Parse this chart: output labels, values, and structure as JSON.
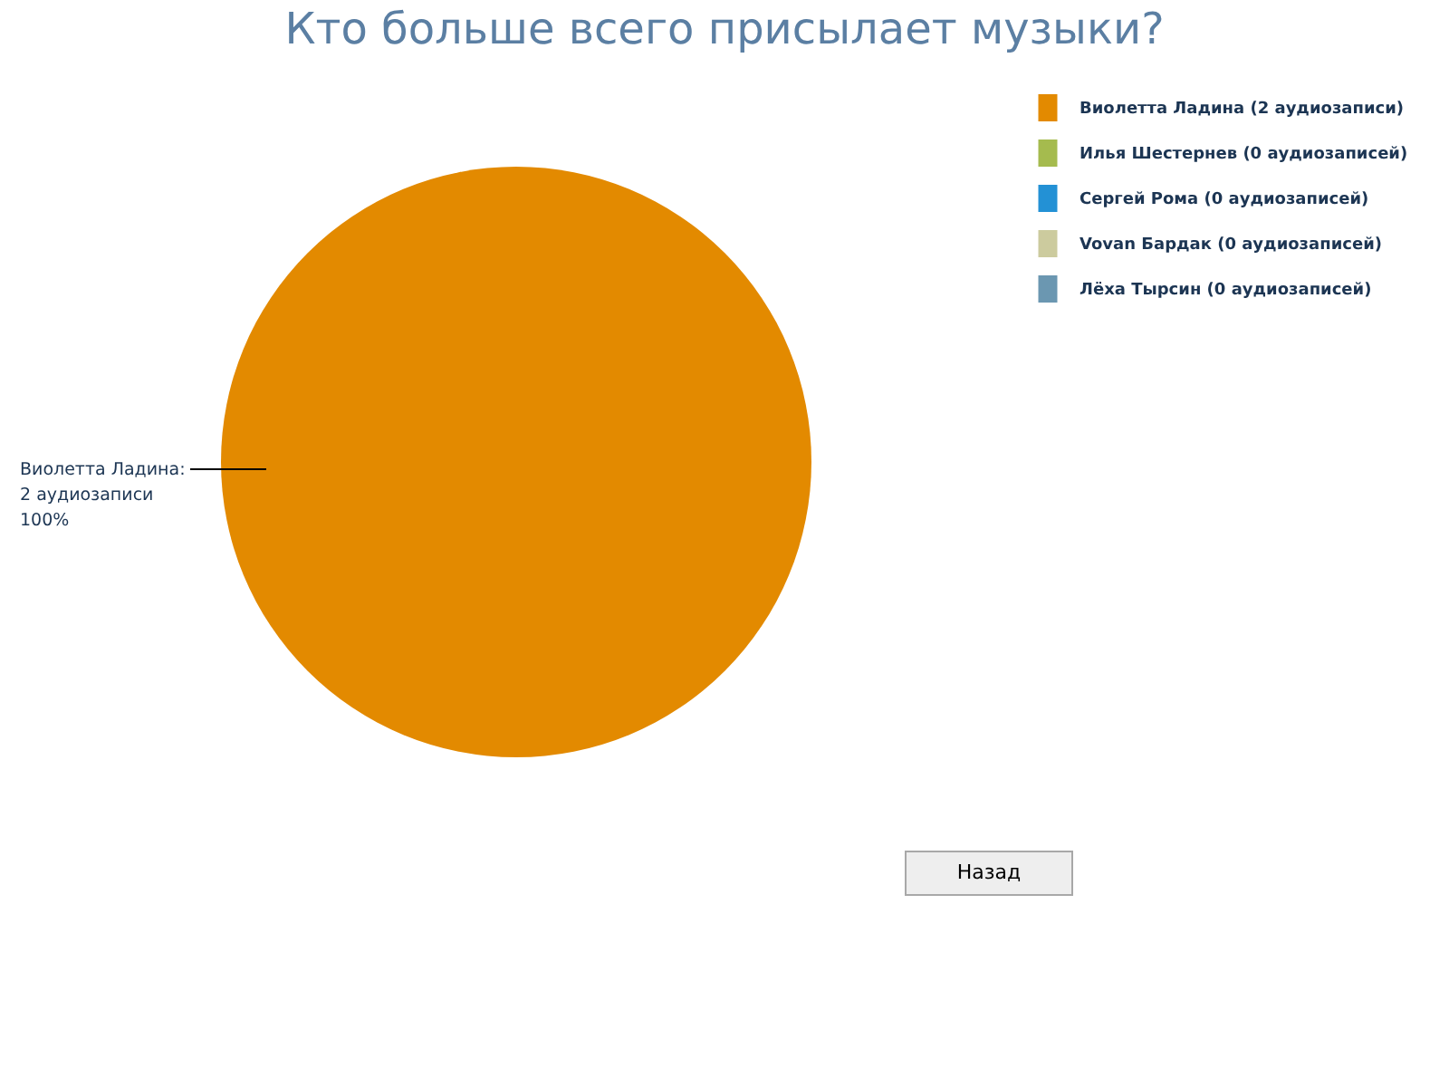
{
  "chart_data": {
    "type": "pie",
    "title": "Кто больше всего присылает музыки?",
    "categories": [
      "Виолетта Ладина (2 аудиозаписи)",
      "Илья Шестернев (0 аудиозаписей)",
      "Сергей Рома (0 аудиозаписей)",
      "Vovan Бардак (0 аудиозаписей)",
      "Лёха Тырсин (0 аудиозаписей)"
    ],
    "values": [
      2,
      0,
      0,
      0,
      0
    ],
    "colors": [
      "#e38a00",
      "#a5bb4e",
      "#2391d5",
      "#cccb9e",
      "#6b97b1"
    ],
    "value_labels": [
      "Виолетта Ладина:\n2 аудиозаписи\n100%",
      null,
      null,
      null,
      null
    ],
    "legend": "top right",
    "annotations": [
      "Назад"
    ]
  }
}
